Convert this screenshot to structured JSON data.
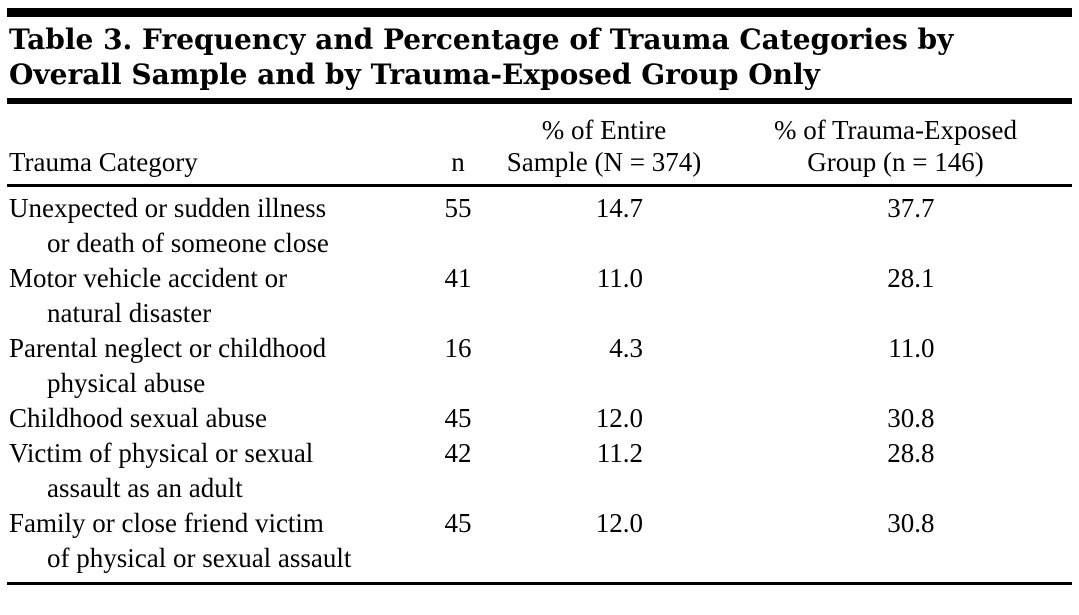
{
  "title": {
    "line1": "Table 3. Frequency and Percentage of Trauma Categories by",
    "line2": "Overall Sample and by Trauma-Exposed Group Only"
  },
  "table": {
    "headers": {
      "category": "Trauma Category",
      "n": "n",
      "pct_sample": [
        "% of Entire",
        "Sample (N = 374)"
      ],
      "pct_group": [
        "% of Trauma-Exposed",
        "Group (n = 146)"
      ]
    },
    "rows": [
      {
        "category": [
          "Unexpected or sudden illness",
          "or death of someone close"
        ],
        "n": "55",
        "pct_sample": "14.7",
        "pct_group": "37.7"
      },
      {
        "category": [
          "Motor vehicle accident or",
          "natural disaster"
        ],
        "n": "41",
        "pct_sample": "11.0",
        "pct_group": "28.1"
      },
      {
        "category": [
          "Parental neglect or childhood",
          "physical abuse"
        ],
        "n": "16",
        "pct_sample": "4.3",
        "pct_group": "11.0"
      },
      {
        "category": [
          "Childhood sexual abuse"
        ],
        "n": "45",
        "pct_sample": "12.0",
        "pct_group": "30.8"
      },
      {
        "category": [
          "Victim of physical or sexual",
          "assault as an adult"
        ],
        "n": "42",
        "pct_sample": "11.2",
        "pct_group": "28.8"
      },
      {
        "category": [
          "Family or close friend victim",
          "of physical or sexual assault"
        ],
        "n": "45",
        "pct_sample": "12.0",
        "pct_group": "30.8"
      }
    ]
  },
  "colors": {
    "background": "#ffffff",
    "text": "#000000",
    "rule": "#000000"
  }
}
